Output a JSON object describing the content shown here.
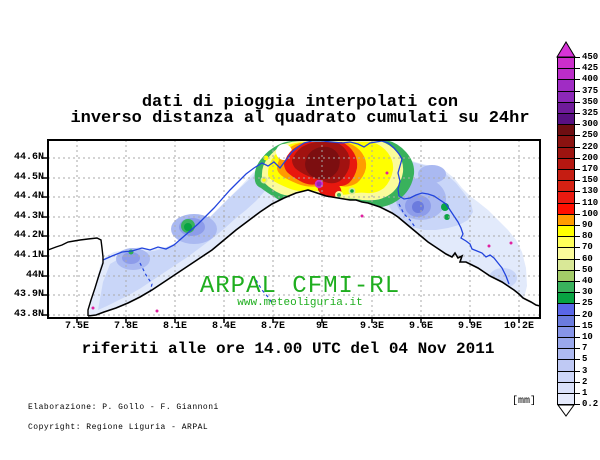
{
  "title": {
    "line1": "dati di pioggia interpolati con",
    "line2": "inverso distanza al quadrato cumulati su 24hr"
  },
  "subtitle": "riferiti alle ore 14.00 UTC del 04 Nov 2011",
  "watermark": {
    "name": "ARPAL CFMI-RL",
    "url": "www.meteoliguria.it",
    "color": "#1fae1f"
  },
  "credits": {
    "line1": "Elaborazione: P. Gollo - F. Giannoni",
    "line2": "Copyright: Regione Liguria - ARPAL"
  },
  "colorbar": {
    "unit": "[mm]",
    "arrow_color": "#d633d6",
    "levels": [
      {
        "value": "450",
        "color": "#cb2ecb"
      },
      {
        "value": "425",
        "color": "#bb2cc9"
      },
      {
        "value": "400",
        "color": "#a02cc4"
      },
      {
        "value": "375",
        "color": "#8c28b8"
      },
      {
        "value": "350",
        "color": "#6f1b9a"
      },
      {
        "value": "325",
        "color": "#581082"
      },
      {
        "value": "300",
        "color": "#6e0e12"
      },
      {
        "value": "250",
        "color": "#8a1210"
      },
      {
        "value": "220",
        "color": "#9d1410"
      },
      {
        "value": "200",
        "color": "#b51711"
      },
      {
        "value": "170",
        "color": "#c51d12"
      },
      {
        "value": "150",
        "color": "#d62113"
      },
      {
        "value": "130",
        "color": "#ea1a10"
      },
      {
        "value": "110",
        "color": "#ff0f00"
      },
      {
        "value": "100",
        "color": "#ff9c00"
      },
      {
        "value": "90",
        "color": "#ffff00"
      },
      {
        "value": "80",
        "color": "#ffff5a"
      },
      {
        "value": "70",
        "color": "#fbfb9b"
      },
      {
        "value": "60",
        "color": "#d9e897"
      },
      {
        "value": "50",
        "color": "#a3cc68"
      },
      {
        "value": "40",
        "color": "#39b25c"
      },
      {
        "value": "30",
        "color": "#07a342"
      },
      {
        "value": "25",
        "color": "#5a66e8"
      },
      {
        "value": "20",
        "color": "#6b7bde"
      },
      {
        "value": "15",
        "color": "#8795e8"
      },
      {
        "value": "10",
        "color": "#9aa8ec"
      },
      {
        "value": "7",
        "color": "#aebaf1"
      },
      {
        "value": "5",
        "color": "#bfc9f4"
      },
      {
        "value": "3",
        "color": "#cdd6f8"
      },
      {
        "value": "2",
        "color": "#dae1fa"
      },
      {
        "value": "1",
        "color": "#e5eafc"
      },
      {
        "value": "0.2",
        "color": null
      }
    ]
  },
  "chart_data": {
    "type": "heatmap",
    "title": "dati di pioggia interpolati con inverso distanza al quadrato cumulati su 24hr",
    "subtitle": "riferiti alle ore 14.00 UTC del 04 Nov 2011",
    "region": "Liguria coastline map (lat/lon axes)",
    "x_ticks": [
      "7.5E",
      "7.8E",
      "8.1E",
      "8.4E",
      "8.7E",
      "9E",
      "9.3E",
      "9.6E",
      "9.9E",
      "10.2E"
    ],
    "y_ticks": [
      "44.6N",
      "44.5N",
      "44.4N",
      "44.3N",
      "44.2N",
      "44.1N",
      "44N",
      "43.9N",
      "43.8N"
    ],
    "unit": "mm",
    "scale_levels_mm": [
      0.2,
      1,
      2,
      3,
      5,
      7,
      10,
      15,
      20,
      25,
      30,
      40,
      50,
      60,
      70,
      80,
      90,
      100,
      110,
      130,
      150,
      170,
      200,
      220,
      250,
      300,
      325,
      350,
      375,
      400,
      425,
      450
    ],
    "grid": "dashed gray graticule at every tick",
    "legend_position": "right vertical colorbar with top arrow (>450) and bottom tail (<0.2)",
    "maxima": [
      {
        "lon": "~9E",
        "lat": "~44.4N",
        "value_mm": ">450",
        "note": "intense storm core (dark red with purple spot) on central Ligurian coast near Genoa, ringed by red/orange/yellow/green"
      },
      {
        "lon": "~8.15E",
        "lat": "~44.27N",
        "value_mm": "30-50",
        "note": "green local maximum in western inland Liguria"
      },
      {
        "lon": "~9.35N",
        "lat": "~44.35N",
        "value_mm": "30-40",
        "note": "small green spots in eastern Liguria"
      }
    ],
    "background_field": "0.2-30 mm light-to-medium blue band covering the whole Liguria arc; white outside region and over sea"
  }
}
